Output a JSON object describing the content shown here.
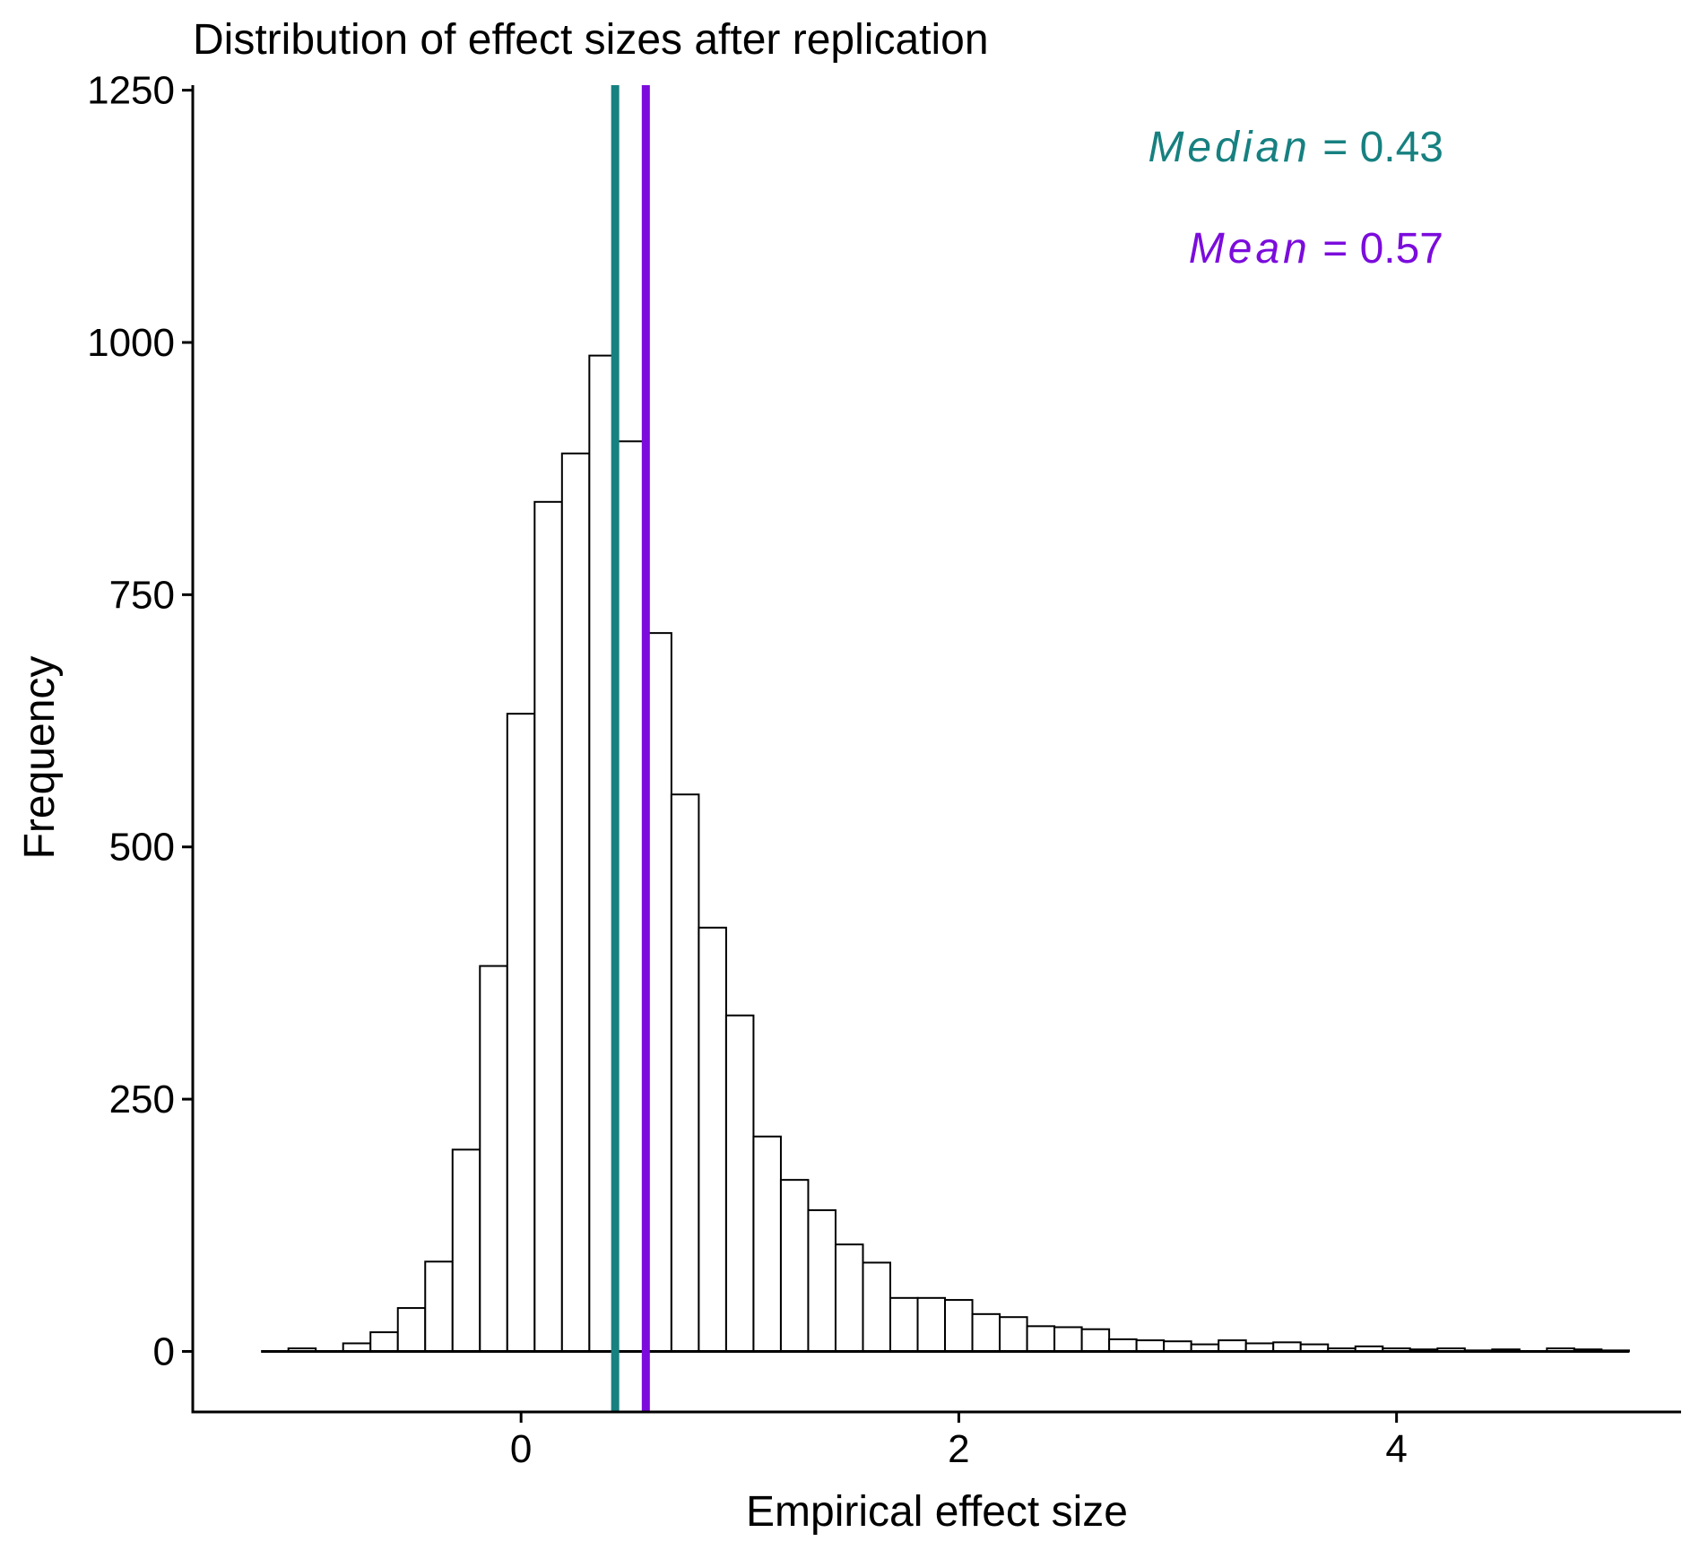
{
  "chart_data": {
    "type": "bar",
    "title": "Distribution of effect sizes after replication",
    "xlabel": "Empirical effect size",
    "ylabel": "Frequency",
    "xlim": [
      -1.5,
      5.3
    ],
    "ylim": [
      -60,
      1255
    ],
    "x_ticks": [
      0,
      2,
      4
    ],
    "x_tick_labels": [
      "0",
      "2",
      "4"
    ],
    "y_ticks": [
      0,
      250,
      500,
      750,
      1000,
      1250
    ],
    "y_tick_labels": [
      "0",
      "250",
      "500",
      "750",
      "1000",
      "1250"
    ],
    "bin_width": 0.125,
    "bin_start": -1.188,
    "values": [
      0,
      3,
      0,
      8,
      19,
      43,
      89,
      200,
      382,
      632,
      842,
      890,
      987,
      902,
      712,
      552,
      420,
      333,
      213,
      170,
      140,
      106,
      88,
      53,
      53,
      51,
      37,
      34,
      25,
      24,
      22,
      12,
      11,
      10,
      7,
      11,
      8,
      9,
      7,
      3,
      5,
      3,
      2,
      3,
      1,
      2,
      0,
      3,
      2,
      1
    ],
    "bar_fill": "#ffffff",
    "bar_stroke": "#000000",
    "reference_lines": [
      {
        "label": "Median",
        "value_text": "0.43",
        "x": 0.43,
        "color": "#178080"
      },
      {
        "label": "Mean",
        "value_text": "0.57",
        "x": 0.57,
        "color": "#7b0cdc"
      }
    ],
    "grid": false,
    "legend": "none"
  }
}
